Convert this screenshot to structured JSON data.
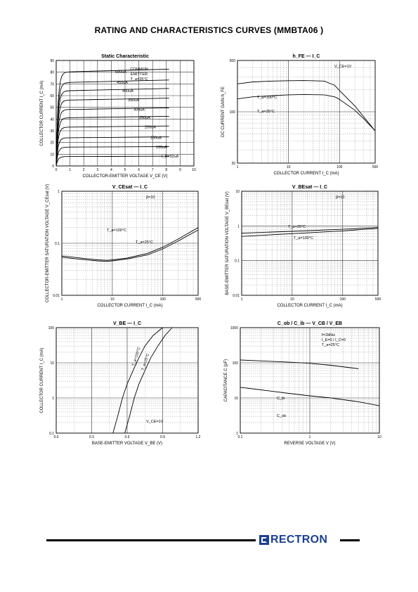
{
  "page_title": "RATING AND CHARACTERISTICS CURVES (MMBTA06 )",
  "brand": {
    "text": "RECTRON",
    "color": "#1c3f94"
  },
  "chart_data": [
    {
      "id": "static",
      "type": "line",
      "title": "Static Characteristic",
      "xlabel": "COLLECTOR-EMITTER VOLTAGE V_CE (V)",
      "ylabel": "COLLECTOR CURRENT I_C (mA)",
      "xscale": "linear",
      "yscale": "linear",
      "xlim": [
        0,
        10
      ],
      "ylim": [
        0,
        90
      ],
      "xticks": [
        "0",
        "1",
        "2",
        "3",
        "4",
        "5",
        "6",
        "7",
        "8",
        "9",
        "10"
      ],
      "yticks": [
        "0",
        "10",
        "20",
        "30",
        "40",
        "50",
        "60",
        "70",
        "80",
        "90"
      ],
      "annotations": [
        "COMMON",
        "EMITTER",
        "T_a=25°C"
      ],
      "series": [
        {
          "name": "500uA",
          "sat": 80,
          "end": 8.2
        },
        {
          "name": "450uA",
          "sat": 71,
          "end": 8.2
        },
        {
          "name": "400uA",
          "sat": 64,
          "end": 8.2
        },
        {
          "name": "350uA",
          "sat": 56,
          "end": 8.2
        },
        {
          "name": "300uA",
          "sat": 48,
          "end": 8.2
        },
        {
          "name": "250uA",
          "sat": 41,
          "end": 8.2
        },
        {
          "name": "200uA",
          "sat": 33,
          "end": 8.2
        },
        {
          "name": "150uA",
          "sat": 24,
          "end": 8.2
        },
        {
          "name": "100uA",
          "sat": 16,
          "end": 8.2
        },
        {
          "name": "I_B=50uA",
          "sat": 8,
          "end": 8.2
        }
      ]
    },
    {
      "id": "hfe",
      "type": "line",
      "title": "h_FE — I_C",
      "xlabel": "COLLECTOR CURRENT I_C (mA)",
      "ylabel": "DC CURRENT GAIN h_FE",
      "xscale": "log",
      "yscale": "log",
      "xlim": [
        1,
        500
      ],
      "ylim": [
        20,
        500
      ],
      "xticks": [
        "1",
        "10",
        "100",
        "500"
      ],
      "yticks": [
        "20",
        "100",
        "500"
      ],
      "annotations": [
        "V_CE=1V"
      ],
      "series": [
        {
          "name": "T_a=100°C",
          "x": [
            1,
            2,
            5,
            10,
            20,
            50,
            80,
            100,
            200,
            300,
            500
          ],
          "y": [
            240,
            255,
            262,
            265,
            266,
            262,
            230,
            195,
            120,
            85,
            55
          ]
        },
        {
          "name": "T_a=25°C",
          "x": [
            1,
            2,
            5,
            10,
            20,
            50,
            80,
            100,
            200,
            300,
            500
          ],
          "y": [
            150,
            160,
            166,
            170,
            172,
            170,
            160,
            148,
            105,
            80,
            55
          ]
        }
      ]
    },
    {
      "id": "vcesat",
      "type": "line",
      "title": "V_CEsat — I_C",
      "xlabel": "COLLECTOR CURRENT I_C (mA)",
      "ylabel": "COLLECTOR-EMITTER SATURATION VOLTAGE V_CEsat (V)",
      "xscale": "log",
      "yscale": "log",
      "xlim": [
        1,
        500
      ],
      "ylim": [
        0.01,
        1
      ],
      "xticks": [
        "1",
        "10",
        "100",
        "500"
      ],
      "yticks": [
        "0.01",
        "0.1",
        "1"
      ],
      "annotations": [
        "β=10"
      ],
      "series": [
        {
          "name": "T_a=100°C",
          "x": [
            1,
            2,
            5,
            8,
            10,
            20,
            50,
            100,
            200,
            500
          ],
          "y": [
            0.057,
            0.053,
            0.048,
            0.047,
            0.048,
            0.052,
            0.064,
            0.084,
            0.12,
            0.2
          ]
        },
        {
          "name": "T_a=25°C",
          "x": [
            1,
            2,
            5,
            8,
            10,
            20,
            50,
            100,
            200,
            500
          ],
          "y": [
            0.054,
            0.05,
            0.046,
            0.045,
            0.046,
            0.05,
            0.06,
            0.078,
            0.11,
            0.18
          ]
        }
      ]
    },
    {
      "id": "vbesat",
      "type": "line",
      "title": "V_BEsat — I_C",
      "xlabel": "COLLECTOR CURRENT I_C (mA)",
      "ylabel": "BASE-EMITTER SATURATION VOLTAGE V_BEsat (V)",
      "xscale": "log",
      "yscale": "log",
      "xlim": [
        1,
        500
      ],
      "ylim": [
        0.01,
        10
      ],
      "xticks": [
        "1",
        "10",
        "100",
        "500"
      ],
      "yticks": [
        "0.01",
        "0.1",
        "1",
        "10"
      ],
      "annotations": [
        "β=10"
      ],
      "series": [
        {
          "name": "T_a=25°C",
          "x": [
            1,
            10,
            100,
            500
          ],
          "y": [
            0.62,
            0.7,
            0.8,
            0.9
          ]
        },
        {
          "name": "T_a=100°C",
          "x": [
            1,
            10,
            100,
            500
          ],
          "y": [
            0.5,
            0.6,
            0.72,
            0.85
          ]
        }
      ]
    },
    {
      "id": "vbe",
      "type": "line",
      "title": "V_BE — I_C",
      "xlabel": "BASE-EMITTER VOLTAGE V_BE (V)",
      "ylabel": "COLLECTOR CURRENT I_C (mA)",
      "xscale": "linear",
      "yscale": "log",
      "xlim": [
        0,
        1.2
      ],
      "ylim": [
        0.1,
        100
      ],
      "xticks": [
        "0.0",
        "0.3",
        "0.6",
        "0.9",
        "1.2"
      ],
      "yticks": [
        "0.1",
        "1",
        "10",
        "100"
      ],
      "annotations": [
        "V_CE=1V"
      ],
      "series": [
        {
          "name": "T_a=100°C",
          "x": [
            0.48,
            0.52,
            0.56,
            0.6,
            0.65,
            0.7,
            0.75,
            0.82,
            0.9
          ],
          "y": [
            0.1,
            0.3,
            1,
            2.5,
            6,
            14,
            30,
            60,
            100
          ]
        },
        {
          "name": "T_a=25°C",
          "x": [
            0.58,
            0.62,
            0.66,
            0.7,
            0.75,
            0.8,
            0.86,
            0.92,
            0.98
          ],
          "y": [
            0.1,
            0.3,
            1,
            2.5,
            6,
            14,
            30,
            60,
            100
          ]
        }
      ]
    },
    {
      "id": "cap",
      "type": "line",
      "title": "C_ob / C_ib — V_CB / V_EB",
      "xlabel": "REVERSE VOLTAGE V (V)",
      "ylabel": "CAPACITANCE C (pF)",
      "xscale": "log",
      "yscale": "log",
      "xlim": [
        0.1,
        10
      ],
      "ylim": [
        1,
        1000
      ],
      "xticks": [
        "0.1",
        "1",
        "10"
      ],
      "yticks": [
        "1",
        "10",
        "100",
        "1000"
      ],
      "annotations": [
        "f=1MHz",
        "I_E=0 / I_C=0",
        "T_a=25°C"
      ],
      "series": [
        {
          "name": "C_ib",
          "x": [
            0.1,
            0.2,
            0.5,
            1,
            2,
            5
          ],
          "y": [
            120,
            113,
            104,
            97,
            85,
            68
          ]
        },
        {
          "name": "C_ob",
          "x": [
            0.1,
            0.2,
            0.5,
            1,
            2,
            5,
            10
          ],
          "y": [
            20,
            17,
            13.5,
            11.5,
            10,
            7.8,
            6
          ]
        }
      ]
    }
  ]
}
